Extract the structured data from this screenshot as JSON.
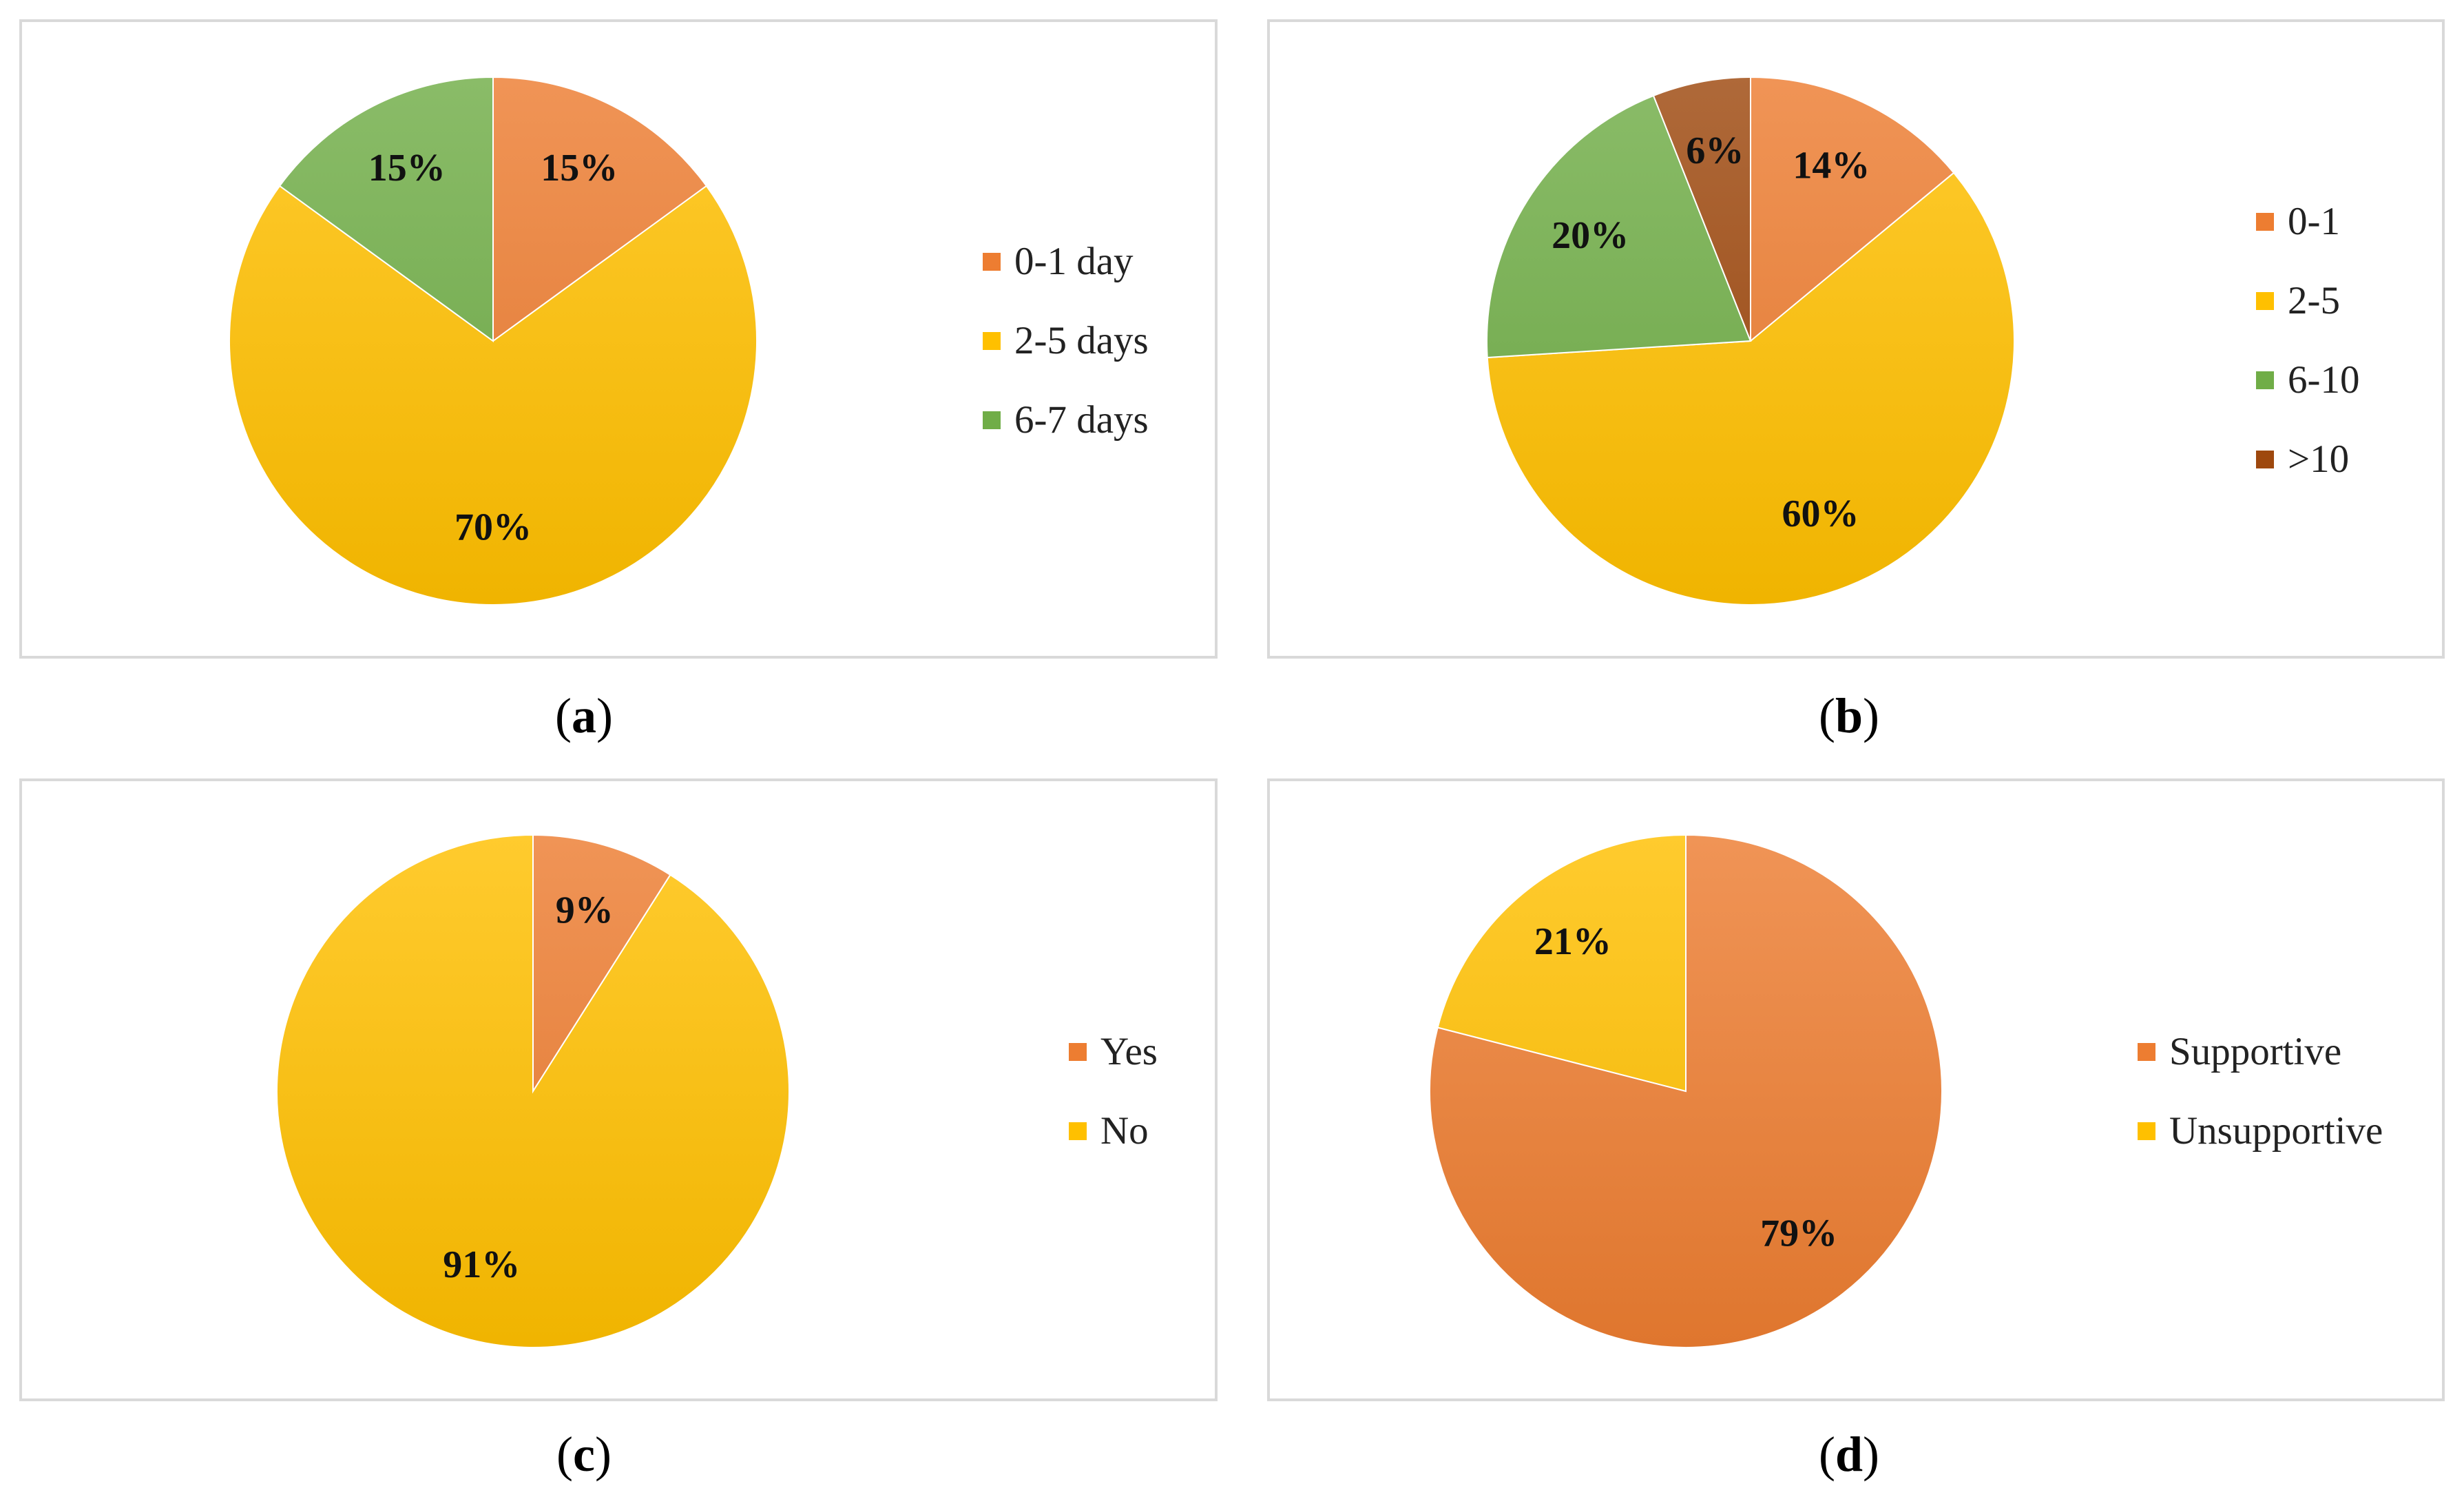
{
  "chart_data": [
    {
      "type": "pie",
      "caption_letter": "a",
      "categories": [
        "0-1 day",
        "2-5 days",
        "6-7 days"
      ],
      "values": [
        15,
        70,
        15
      ],
      "labels": [
        "15%",
        "70%",
        "15%"
      ],
      "colors": [
        "#ED7D31",
        "#FFC000",
        "#70AD47"
      ],
      "legend_position": "right"
    },
    {
      "type": "pie",
      "caption_letter": "b",
      "categories": [
        "0-1",
        "2-5",
        "6-10",
        ">10"
      ],
      "values": [
        14,
        60,
        20,
        6
      ],
      "labels": [
        "14%",
        "60%",
        "20%",
        "6%"
      ],
      "colors": [
        "#ED7D31",
        "#FFC000",
        "#70AD47",
        "#9E480E"
      ],
      "legend_position": "right"
    },
    {
      "type": "pie",
      "caption_letter": "c",
      "categories": [
        "Yes",
        "No"
      ],
      "values": [
        9,
        91
      ],
      "labels": [
        "9%",
        "91%"
      ],
      "colors": [
        "#ED7D31",
        "#FFC000"
      ],
      "legend_position": "right"
    },
    {
      "type": "pie",
      "caption_letter": "d",
      "categories": [
        "Supportive",
        "Unsupportive"
      ],
      "values": [
        79,
        21
      ],
      "labels": [
        "79%",
        "21%"
      ],
      "colors": [
        "#ED7D31",
        "#FFC000"
      ],
      "legend_position": "right"
    }
  ]
}
